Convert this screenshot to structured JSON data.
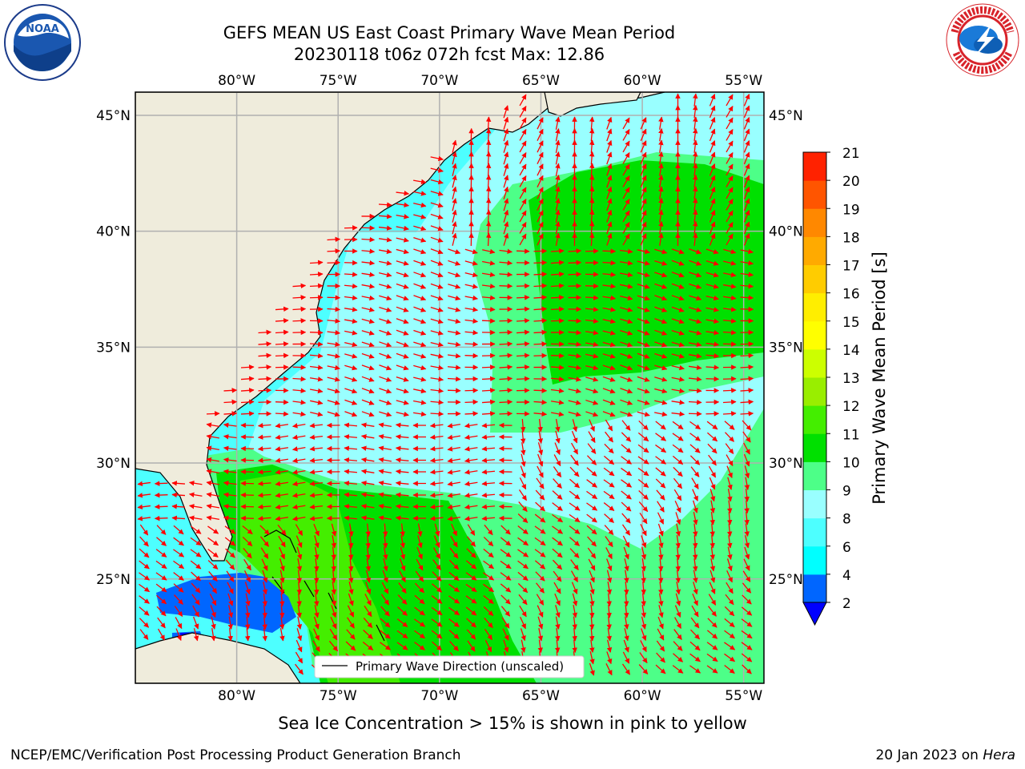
{
  "title_line1": "GEFS MEAN US East Coast Primary Wave Mean Period",
  "title_line2": "20230118 t06z 072h fcst   Max: 12.86",
  "logos": {
    "left": "noaa-logo",
    "right": "national-weather-service-logo"
  },
  "map": {
    "lon_ticks": [
      "80°W",
      "75°W",
      "70°W",
      "65°W",
      "60°W",
      "55°W"
    ],
    "lat_ticks": [
      "45°N",
      "40°N",
      "35°N",
      "30°N",
      "25°N"
    ],
    "lon_range": [
      -85,
      -54
    ],
    "lat_range": [
      20.5,
      46
    ],
    "land_color": "#efecdc",
    "grid_color": "#b0b0b0",
    "arrow_color": "#ff0000",
    "legend_label": "Primary Wave Direction (unscaled)"
  },
  "colorbar": {
    "label": "Primary Wave Mean Period [s]",
    "ticks": [
      "2",
      "4",
      "6",
      "8",
      "9",
      "10",
      "11",
      "12",
      "13",
      "14",
      "15",
      "16",
      "17",
      "18",
      "19",
      "20",
      "21"
    ],
    "colors": [
      "#0066ff",
      "#00ffff",
      "#4dffff",
      "#99ffff",
      "#4dff88",
      "#00e000",
      "#44ee00",
      "#99ee00",
      "#ccff00",
      "#ffff00",
      "#ffee00",
      "#ffcc00",
      "#ffaa00",
      "#ff8800",
      "#ff5500",
      "#ff2200"
    ],
    "extend_min_color": "#0000ff"
  },
  "note": "Sea Ice Concentration > 15% is shown in pink to yellow",
  "footer_left": "NCEP/EMC/Verification Post Processing Product Generation Branch",
  "footer_date": "20 Jan 2023 on",
  "footer_machine": "Hera"
}
